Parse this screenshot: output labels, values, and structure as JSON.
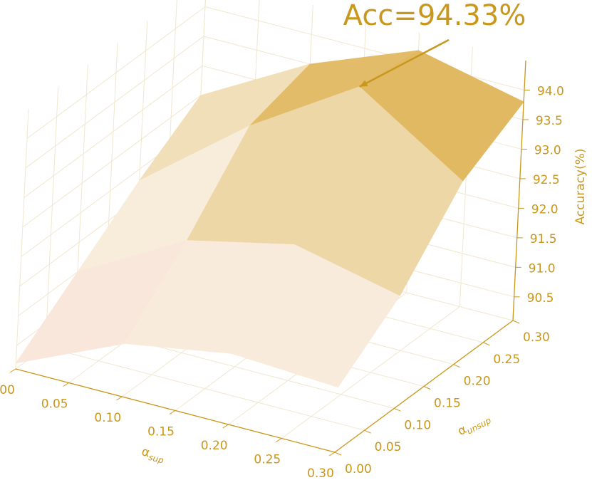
{
  "chart_data": {
    "type": "surface3d",
    "xlabel": {
      "symbol": "α",
      "subscript": "sup"
    },
    "ylabel": {
      "symbol": "α",
      "subscript": "unsup"
    },
    "zlabel": "Accuracy(%)",
    "x": [
      0,
      0.1,
      0.2,
      0.3
    ],
    "y": [
      0,
      0.1,
      0.2,
      0.3
    ],
    "z": [
      [
        90.2,
        91.0,
        91.3,
        91.2
      ],
      [
        91.0,
        92.0,
        92.4,
        92.0
      ],
      [
        91.8,
        93.2,
        94.33,
        93.2
      ],
      [
        92.5,
        93.5,
        94.2,
        93.8
      ]
    ],
    "xlim": [
      0,
      0.3
    ],
    "ylim": [
      0,
      0.3
    ],
    "zlim": [
      90.1,
      94.5
    ],
    "xticks": [
      {
        "value": 0,
        "label": "0.00"
      },
      0.05,
      {
        "value": 0.1,
        "label": "0.10"
      },
      0.15,
      {
        "value": 0.2,
        "label": "0.20"
      },
      0.25,
      {
        "value": 0.3,
        "label": "0.30"
      }
    ],
    "yticks": [
      {
        "value": 0,
        "label": "0.00"
      },
      0.05,
      {
        "value": 0.1,
        "label": "0.10"
      },
      0.15,
      {
        "value": 0.2,
        "label": "0.20"
      },
      0.25,
      {
        "value": 0.3,
        "label": "0.30"
      }
    ],
    "zticks": [
      90.5,
      {
        "value": 91,
        "label": "91.0"
      },
      91.5,
      {
        "value": 92,
        "label": "92.0"
      },
      92.5,
      {
        "value": 93,
        "label": "93.0"
      },
      93.5,
      {
        "value": 94,
        "label": "94.0"
      }
    ],
    "colormap": [
      "#fbe2dc",
      "#f8eedb",
      "#d8a534"
    ],
    "axis_color": "#c9971c",
    "grid": true,
    "annotation": {
      "text": "Acc=94.33%",
      "x": 0.2,
      "y": 0.2,
      "z": 94.33
    }
  }
}
